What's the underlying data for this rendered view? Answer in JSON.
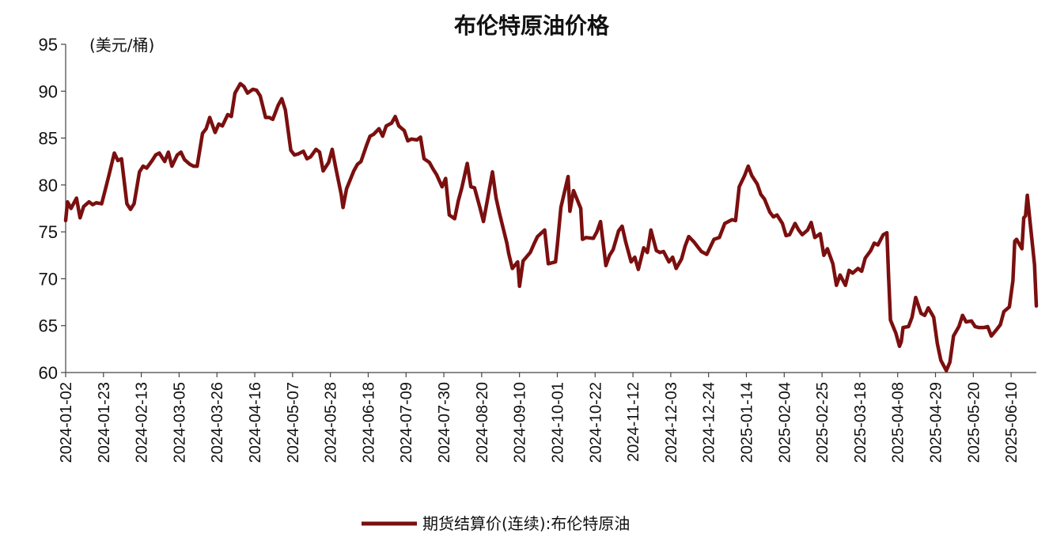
{
  "chart_data": {
    "type": "line",
    "title": "布伦特原油价格",
    "unit_label": "(美元/桶)",
    "ylim": [
      60,
      95
    ],
    "yticks": [
      "95",
      "90",
      "85",
      "80",
      "75",
      "70",
      "65",
      "60"
    ],
    "x_tick_labels": [
      "2024-01-02",
      "2024-01-23",
      "2024-02-13",
      "2024-03-05",
      "2024-03-26",
      "2024-04-16",
      "2024-05-07",
      "2024-05-28",
      "2024-06-18",
      "2024-07-09",
      "2024-07-30",
      "2024-08-20",
      "2024-09-10",
      "2024-10-01",
      "2024-10-22",
      "2024-11-12",
      "2024-12-03",
      "2024-12-24",
      "2025-01-14",
      "2025-02-04",
      "2025-02-25",
      "2025-03-18",
      "2025-04-08",
      "2025-04-29",
      "2025-05-20",
      "2025-06-10"
    ],
    "grid": false,
    "legend_position": "bottom-center",
    "series": [
      {
        "name": "期货结算价(连续):布伦特原油",
        "color": "#7b0f0f",
        "points": [
          [
            "2024-01-02",
            76.2
          ],
          [
            "2024-01-03",
            78.2
          ],
          [
            "2024-01-05",
            77.5
          ],
          [
            "2024-01-08",
            78.6
          ],
          [
            "2024-01-10",
            76.5
          ],
          [
            "2024-01-12",
            77.7
          ],
          [
            "2024-01-15",
            78.2
          ],
          [
            "2024-01-17",
            77.9
          ],
          [
            "2024-01-19",
            78.1
          ],
          [
            "2024-01-22",
            78.0
          ],
          [
            "2024-01-24",
            79.5
          ],
          [
            "2024-01-26",
            81.0
          ],
          [
            "2024-01-29",
            83.4
          ],
          [
            "2024-01-31",
            82.6
          ],
          [
            "2024-02-02",
            82.8
          ],
          [
            "2024-02-05",
            78.0
          ],
          [
            "2024-02-07",
            77.4
          ],
          [
            "2024-02-09",
            78.0
          ],
          [
            "2024-02-12",
            81.4
          ],
          [
            "2024-02-14",
            82.0
          ],
          [
            "2024-02-16",
            81.8
          ],
          [
            "2024-02-19",
            82.6
          ],
          [
            "2024-02-21",
            83.2
          ],
          [
            "2024-02-23",
            83.4
          ],
          [
            "2024-02-26",
            82.5
          ],
          [
            "2024-02-28",
            83.5
          ],
          [
            "2024-03-01",
            82.0
          ],
          [
            "2024-03-04",
            83.2
          ],
          [
            "2024-03-06",
            83.5
          ],
          [
            "2024-03-08",
            82.7
          ],
          [
            "2024-03-11",
            82.2
          ],
          [
            "2024-03-13",
            82.0
          ],
          [
            "2024-03-15",
            82.0
          ],
          [
            "2024-03-18",
            85.5
          ],
          [
            "2024-03-20",
            86.0
          ],
          [
            "2024-03-22",
            87.2
          ],
          [
            "2024-03-25",
            85.6
          ],
          [
            "2024-03-27",
            86.5
          ],
          [
            "2024-03-29",
            86.3
          ],
          [
            "2024-04-01",
            87.5
          ],
          [
            "2024-04-03",
            87.3
          ],
          [
            "2024-04-05",
            89.8
          ],
          [
            "2024-04-08",
            90.8
          ],
          [
            "2024-04-10",
            90.5
          ],
          [
            "2024-04-12",
            89.8
          ],
          [
            "2024-04-15",
            90.2
          ],
          [
            "2024-04-17",
            90.1
          ],
          [
            "2024-04-19",
            89.5
          ],
          [
            "2024-04-22",
            87.2
          ],
          [
            "2024-04-24",
            87.2
          ],
          [
            "2024-04-26",
            87.0
          ],
          [
            "2024-04-29",
            88.5
          ],
          [
            "2024-05-01",
            89.2
          ],
          [
            "2024-05-03",
            88.0
          ],
          [
            "2024-05-06",
            83.7
          ],
          [
            "2024-05-08",
            83.2
          ],
          [
            "2024-05-10",
            83.3
          ],
          [
            "2024-05-13",
            83.6
          ],
          [
            "2024-05-15",
            82.8
          ],
          [
            "2024-05-17",
            83.0
          ],
          [
            "2024-05-20",
            83.8
          ],
          [
            "2024-05-22",
            83.5
          ],
          [
            "2024-05-24",
            81.5
          ],
          [
            "2024-05-27",
            82.4
          ],
          [
            "2024-05-29",
            83.8
          ],
          [
            "2024-05-31",
            81.8
          ],
          [
            "2024-06-03",
            79.0
          ],
          [
            "2024-06-04",
            77.6
          ],
          [
            "2024-06-06",
            79.6
          ],
          [
            "2024-06-10",
            81.5
          ],
          [
            "2024-06-12",
            82.2
          ],
          [
            "2024-06-14",
            82.5
          ],
          [
            "2024-06-17",
            84.2
          ],
          [
            "2024-06-19",
            85.2
          ],
          [
            "2024-06-21",
            85.4
          ],
          [
            "2024-06-24",
            86.0
          ],
          [
            "2024-06-26",
            85.2
          ],
          [
            "2024-06-28",
            86.3
          ],
          [
            "2024-07-01",
            86.6
          ],
          [
            "2024-07-03",
            87.3
          ],
          [
            "2024-07-05",
            86.3
          ],
          [
            "2024-07-08",
            85.8
          ],
          [
            "2024-07-10",
            84.7
          ],
          [
            "2024-07-12",
            84.9
          ],
          [
            "2024-07-15",
            84.8
          ],
          [
            "2024-07-17",
            85.1
          ],
          [
            "2024-07-19",
            82.8
          ],
          [
            "2024-07-22",
            82.4
          ],
          [
            "2024-07-24",
            81.7
          ],
          [
            "2024-07-26",
            81.1
          ],
          [
            "2024-07-29",
            79.8
          ],
          [
            "2024-07-31",
            80.7
          ],
          [
            "2024-08-02",
            76.8
          ],
          [
            "2024-08-05",
            76.4
          ],
          [
            "2024-08-07",
            78.3
          ],
          [
            "2024-08-09",
            79.7
          ],
          [
            "2024-08-12",
            82.3
          ],
          [
            "2024-08-14",
            79.8
          ],
          [
            "2024-08-16",
            79.7
          ],
          [
            "2024-08-19",
            77.6
          ],
          [
            "2024-08-21",
            76.1
          ],
          [
            "2024-08-23",
            78.2
          ],
          [
            "2024-08-26",
            81.4
          ],
          [
            "2024-08-28",
            78.6
          ],
          [
            "2024-08-30",
            76.9
          ],
          [
            "2024-09-03",
            73.8
          ],
          [
            "2024-09-04",
            72.7
          ],
          [
            "2024-09-06",
            71.1
          ],
          [
            "2024-09-09",
            71.8
          ],
          [
            "2024-09-10",
            69.2
          ],
          [
            "2024-09-12",
            71.9
          ],
          [
            "2024-09-16",
            72.8
          ],
          [
            "2024-09-18",
            73.7
          ],
          [
            "2024-09-20",
            74.5
          ],
          [
            "2024-09-24",
            75.2
          ],
          [
            "2024-09-26",
            71.6
          ],
          [
            "2024-09-30",
            71.8
          ],
          [
            "2024-10-01",
            73.6
          ],
          [
            "2024-10-03",
            77.6
          ],
          [
            "2024-10-07",
            80.9
          ],
          [
            "2024-10-08",
            77.2
          ],
          [
            "2024-10-10",
            79.4
          ],
          [
            "2024-10-14",
            77.5
          ],
          [
            "2024-10-15",
            74.2
          ],
          [
            "2024-10-17",
            74.4
          ],
          [
            "2024-10-21",
            74.3
          ],
          [
            "2024-10-23",
            75.0
          ],
          [
            "2024-10-25",
            76.1
          ],
          [
            "2024-10-28",
            71.4
          ],
          [
            "2024-10-30",
            72.5
          ],
          [
            "2024-11-01",
            73.1
          ],
          [
            "2024-11-04",
            75.1
          ],
          [
            "2024-11-06",
            75.6
          ],
          [
            "2024-11-08",
            73.9
          ],
          [
            "2024-11-11",
            71.8
          ],
          [
            "2024-11-13",
            72.3
          ],
          [
            "2024-11-15",
            71.0
          ],
          [
            "2024-11-18",
            73.3
          ],
          [
            "2024-11-20",
            72.8
          ],
          [
            "2024-11-22",
            75.2
          ],
          [
            "2024-11-25",
            73.0
          ],
          [
            "2024-11-27",
            72.8
          ],
          [
            "2024-11-29",
            72.9
          ],
          [
            "2024-12-02",
            71.8
          ],
          [
            "2024-12-04",
            72.3
          ],
          [
            "2024-12-06",
            71.1
          ],
          [
            "2024-12-09",
            72.1
          ],
          [
            "2024-12-11",
            73.5
          ],
          [
            "2024-12-13",
            74.5
          ],
          [
            "2024-12-16",
            73.9
          ],
          [
            "2024-12-18",
            73.4
          ],
          [
            "2024-12-20",
            72.9
          ],
          [
            "2024-12-23",
            72.6
          ],
          [
            "2024-12-27",
            74.2
          ],
          [
            "2024-12-30",
            74.4
          ],
          [
            "2025-01-02",
            75.9
          ],
          [
            "2025-01-06",
            76.3
          ],
          [
            "2025-01-08",
            76.2
          ],
          [
            "2025-01-10",
            79.8
          ],
          [
            "2025-01-13",
            81.0
          ],
          [
            "2025-01-15",
            82.0
          ],
          [
            "2025-01-17",
            81.0
          ],
          [
            "2025-01-20",
            80.1
          ],
          [
            "2025-01-22",
            79.0
          ],
          [
            "2025-01-24",
            78.5
          ],
          [
            "2025-01-27",
            77.1
          ],
          [
            "2025-01-29",
            76.6
          ],
          [
            "2025-01-31",
            76.8
          ],
          [
            "2025-02-03",
            75.9
          ],
          [
            "2025-02-05",
            74.6
          ],
          [
            "2025-02-07",
            74.7
          ],
          [
            "2025-02-10",
            75.9
          ],
          [
            "2025-02-12",
            75.2
          ],
          [
            "2025-02-14",
            74.7
          ],
          [
            "2025-02-17",
            75.2
          ],
          [
            "2025-02-19",
            76.0
          ],
          [
            "2025-02-21",
            74.4
          ],
          [
            "2025-02-24",
            74.8
          ],
          [
            "2025-02-26",
            72.5
          ],
          [
            "2025-02-28",
            73.2
          ],
          [
            "2025-03-03",
            71.6
          ],
          [
            "2025-03-05",
            69.3
          ],
          [
            "2025-03-07",
            70.4
          ],
          [
            "2025-03-10",
            69.3
          ],
          [
            "2025-03-12",
            70.9
          ],
          [
            "2025-03-14",
            70.6
          ],
          [
            "2025-03-17",
            71.1
          ],
          [
            "2025-03-19",
            70.8
          ],
          [
            "2025-03-21",
            72.2
          ],
          [
            "2025-03-24",
            73.0
          ],
          [
            "2025-03-26",
            73.8
          ],
          [
            "2025-03-28",
            73.6
          ],
          [
            "2025-03-31",
            74.7
          ],
          [
            "2025-04-02",
            74.9
          ],
          [
            "2025-04-03",
            70.1
          ],
          [
            "2025-04-04",
            65.6
          ],
          [
            "2025-04-07",
            64.2
          ],
          [
            "2025-04-09",
            62.8
          ],
          [
            "2025-04-10",
            63.3
          ],
          [
            "2025-04-11",
            64.8
          ],
          [
            "2025-04-14",
            64.9
          ],
          [
            "2025-04-16",
            65.9
          ],
          [
            "2025-04-18",
            68.0
          ],
          [
            "2025-04-21",
            66.3
          ],
          [
            "2025-04-23",
            66.1
          ],
          [
            "2025-04-25",
            66.9
          ],
          [
            "2025-04-28",
            65.9
          ],
          [
            "2025-04-30",
            63.1
          ],
          [
            "2025-05-02",
            61.3
          ],
          [
            "2025-05-05",
            60.2
          ],
          [
            "2025-05-07",
            61.1
          ],
          [
            "2025-05-09",
            63.9
          ],
          [
            "2025-05-12",
            64.9
          ],
          [
            "2025-05-14",
            66.1
          ],
          [
            "2025-05-16",
            65.4
          ],
          [
            "2025-05-19",
            65.5
          ],
          [
            "2025-05-21",
            64.9
          ],
          [
            "2025-05-23",
            64.8
          ],
          [
            "2025-05-26",
            64.8
          ],
          [
            "2025-05-28",
            64.9
          ],
          [
            "2025-05-30",
            63.9
          ],
          [
            "2025-06-02",
            64.6
          ],
          [
            "2025-06-04",
            65.1
          ],
          [
            "2025-06-06",
            66.5
          ],
          [
            "2025-06-09",
            67.0
          ],
          [
            "2025-06-11",
            69.8
          ],
          [
            "2025-06-12",
            74.0
          ],
          [
            "2025-06-13",
            74.2
          ],
          [
            "2025-06-16",
            73.2
          ],
          [
            "2025-06-17",
            76.5
          ],
          [
            "2025-06-18",
            76.7
          ],
          [
            "2025-06-19",
            78.9
          ],
          [
            "2025-06-20",
            77.0
          ],
          [
            "2025-06-23",
            71.5
          ],
          [
            "2025-06-24",
            67.1
          ]
        ]
      }
    ]
  }
}
